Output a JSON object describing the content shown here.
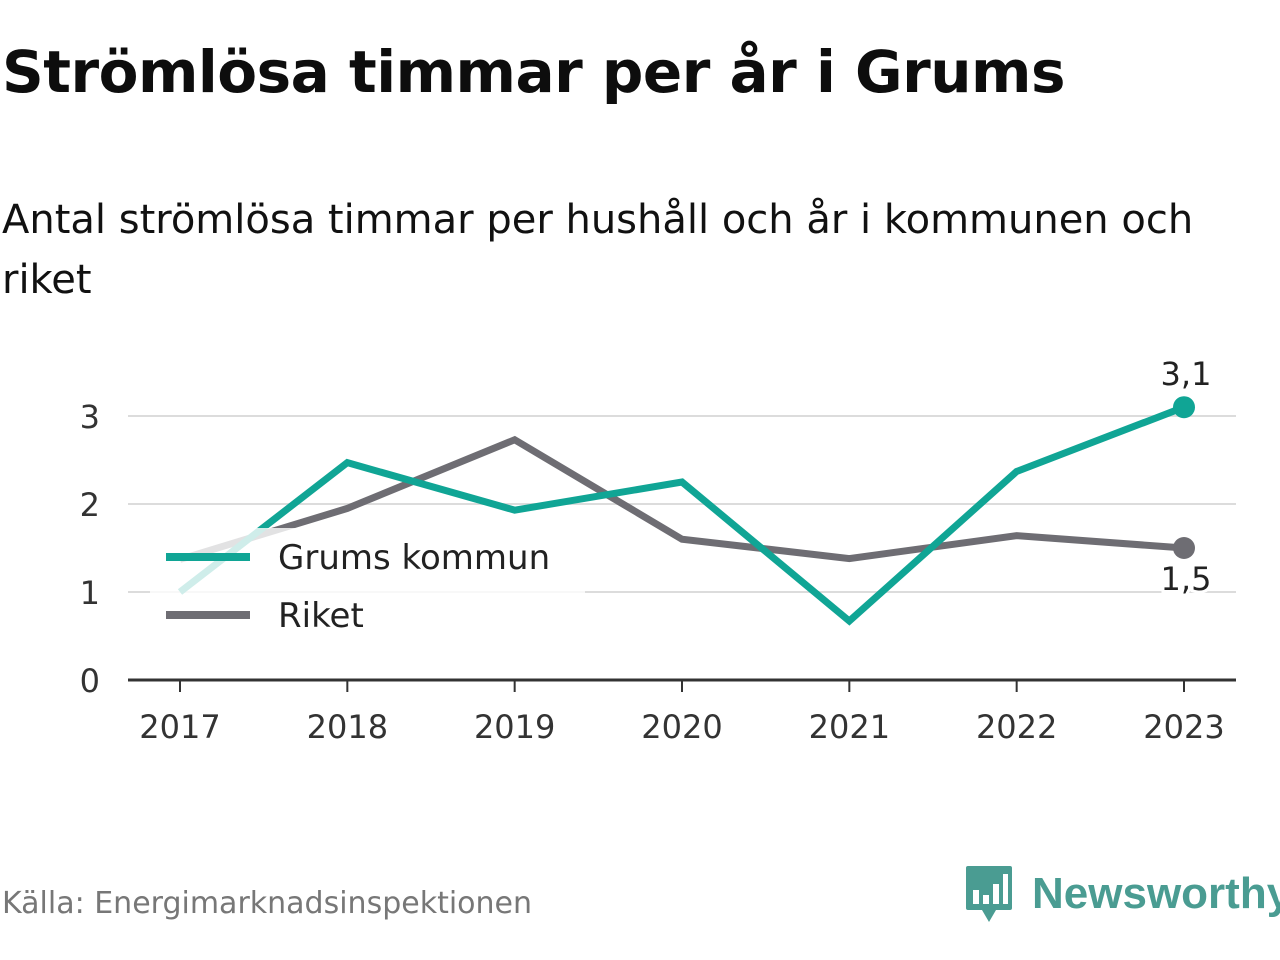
{
  "header": {
    "title": "Strömlösa timmar per år i Grums",
    "subtitle": "Antal strömlösa timmar per hushåll och år i kommunen och riket"
  },
  "chart_data": {
    "type": "line",
    "x": [
      "2017",
      "2018",
      "2019",
      "2020",
      "2021",
      "2022",
      "2023"
    ],
    "series": [
      {
        "name": "Grums kommun",
        "color": "#10a595",
        "values": [
          1.0,
          2.47,
          1.93,
          2.25,
          0.67,
          2.37,
          3.1
        ],
        "end_label": "3,1"
      },
      {
        "name": "Riket",
        "color": "#6e6d73",
        "values": [
          1.37,
          1.95,
          2.73,
          1.6,
          1.38,
          1.64,
          1.5
        ],
        "end_label": "1,5"
      }
    ],
    "y_ticks": [
      "0",
      "1",
      "2",
      "3"
    ],
    "ylim": [
      0,
      3.1
    ],
    "grid": true,
    "legend_position": "left"
  },
  "footer": {
    "source": "Källa: Energimarknadsinspektionen",
    "brand": "Newsworthy",
    "brand_color": "#4a9c92",
    "logo_icon": "bar-chart-speech-bubble-icon"
  }
}
